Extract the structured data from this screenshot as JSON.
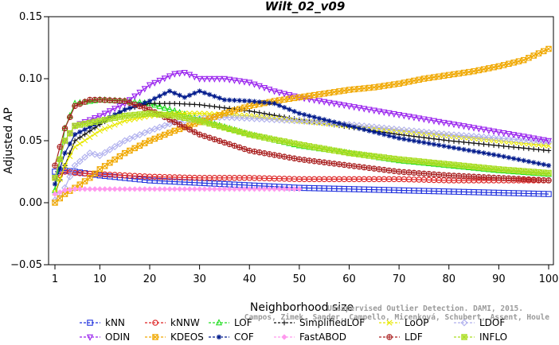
{
  "chart_data": {
    "type": "line",
    "title": "Wilt_02_v09",
    "xlabel": "Neighborhood size",
    "ylabel": "Adjusted AP",
    "xlim": [
      1,
      100
    ],
    "ylim": [
      -0.05,
      0.15
    ],
    "xticks": [
      "1",
      "10",
      "20",
      "30",
      "40",
      "50",
      "60",
      "70",
      "80",
      "90",
      "100"
    ],
    "yticks": [
      "−0.05",
      "0.00",
      "0.05",
      "0.10",
      "0.15"
    ],
    "grid": false,
    "legend_position": "bottom",
    "credit": {
      "line1": "Unsupervised Outlier Detection. DAMI, 2015.",
      "line2": "Campos, Zimek, Sander, Campello, Micenková, Schubert, Assent, Houle"
    },
    "series": [
      {
        "name": "kNN",
        "color": "#2233dd",
        "marker": "square",
        "points": [
          [
            1,
            0.025
          ],
          [
            3,
            0.026
          ],
          [
            5,
            0.025
          ],
          [
            10,
            0.022
          ],
          [
            20,
            0.018
          ],
          [
            30,
            0.016
          ],
          [
            40,
            0.014
          ],
          [
            50,
            0.012
          ],
          [
            60,
            0.011
          ],
          [
            70,
            0.01
          ],
          [
            80,
            0.009
          ],
          [
            90,
            0.008
          ],
          [
            100,
            0.007
          ]
        ]
      },
      {
        "name": "kNNW",
        "color": "#dd2222",
        "marker": "circle",
        "points": [
          [
            1,
            0.02
          ],
          [
            3,
            0.025
          ],
          [
            5,
            0.024
          ],
          [
            10,
            0.023
          ],
          [
            20,
            0.021
          ],
          [
            30,
            0.02
          ],
          [
            40,
            0.02
          ],
          [
            50,
            0.019
          ],
          [
            60,
            0.019
          ],
          [
            70,
            0.019
          ],
          [
            80,
            0.018
          ],
          [
            90,
            0.018
          ],
          [
            100,
            0.018
          ]
        ]
      },
      {
        "name": "LOF",
        "color": "#22dd22",
        "marker": "triangle",
        "points": [
          [
            1,
            0.01
          ],
          [
            3,
            0.06
          ],
          [
            5,
            0.08
          ],
          [
            10,
            0.083
          ],
          [
            15,
            0.082
          ],
          [
            20,
            0.08
          ],
          [
            25,
            0.074
          ],
          [
            30,
            0.067
          ],
          [
            40,
            0.055
          ],
          [
            50,
            0.046
          ],
          [
            60,
            0.04
          ],
          [
            70,
            0.034
          ],
          [
            80,
            0.03
          ],
          [
            90,
            0.026
          ],
          [
            100,
            0.023
          ]
        ]
      },
      {
        "name": "SimplifiedLOF",
        "color": "#111111",
        "marker": "plus",
        "points": [
          [
            1,
            0.007
          ],
          [
            3,
            0.03
          ],
          [
            5,
            0.05
          ],
          [
            10,
            0.063
          ],
          [
            15,
            0.075
          ],
          [
            20,
            0.08
          ],
          [
            25,
            0.08
          ],
          [
            30,
            0.079
          ],
          [
            40,
            0.074
          ],
          [
            50,
            0.067
          ],
          [
            60,
            0.061
          ],
          [
            70,
            0.055
          ],
          [
            80,
            0.05
          ],
          [
            90,
            0.046
          ],
          [
            100,
            0.042
          ]
        ]
      },
      {
        "name": "LoOP",
        "color": "#e8e800",
        "marker": "x",
        "points": [
          [
            1,
            0.008
          ],
          [
            3,
            0.03
          ],
          [
            5,
            0.045
          ],
          [
            10,
            0.058
          ],
          [
            15,
            0.066
          ],
          [
            20,
            0.07
          ],
          [
            25,
            0.072
          ],
          [
            30,
            0.072
          ],
          [
            40,
            0.07
          ],
          [
            50,
            0.066
          ],
          [
            60,
            0.062
          ],
          [
            70,
            0.058
          ],
          [
            80,
            0.054
          ],
          [
            90,
            0.05
          ],
          [
            100,
            0.046
          ]
        ]
      },
      {
        "name": "LDOF",
        "color": "#b0b0ee",
        "marker": "diamond",
        "points": [
          [
            1,
            0.002
          ],
          [
            3,
            0.012
          ],
          [
            5,
            0.03
          ],
          [
            8,
            0.04
          ],
          [
            10,
            0.038
          ],
          [
            15,
            0.05
          ],
          [
            20,
            0.058
          ],
          [
            25,
            0.065
          ],
          [
            30,
            0.068
          ],
          [
            35,
            0.069
          ],
          [
            40,
            0.068
          ],
          [
            50,
            0.066
          ],
          [
            60,
            0.063
          ],
          [
            70,
            0.059
          ],
          [
            80,
            0.055
          ],
          [
            90,
            0.052
          ],
          [
            100,
            0.049
          ]
        ]
      },
      {
        "name": "ODIN",
        "color": "#9922ee",
        "marker": "triangle-down",
        "points": [
          [
            1,
            0.02
          ],
          [
            3,
            0.05
          ],
          [
            5,
            0.062
          ],
          [
            10,
            0.07
          ],
          [
            15,
            0.08
          ],
          [
            20,
            0.095
          ],
          [
            25,
            0.104
          ],
          [
            27,
            0.105
          ],
          [
            30,
            0.1
          ],
          [
            35,
            0.1
          ],
          [
            40,
            0.097
          ],
          [
            45,
            0.09
          ],
          [
            50,
            0.085
          ],
          [
            60,
            0.078
          ],
          [
            70,
            0.071
          ],
          [
            80,
            0.064
          ],
          [
            90,
            0.057
          ],
          [
            100,
            0.05
          ]
        ]
      },
      {
        "name": "KDEOS",
        "color": "#f0a800",
        "marker": "square-x",
        "points": [
          [
            1,
            0.0
          ],
          [
            3,
            0.007
          ],
          [
            5,
            0.012
          ],
          [
            8,
            0.02
          ],
          [
            10,
            0.027
          ],
          [
            15,
            0.04
          ],
          [
            20,
            0.05
          ],
          [
            25,
            0.058
          ],
          [
            30,
            0.065
          ],
          [
            35,
            0.072
          ],
          [
            40,
            0.078
          ],
          [
            45,
            0.082
          ],
          [
            50,
            0.085
          ],
          [
            55,
            0.088
          ],
          [
            60,
            0.091
          ],
          [
            65,
            0.093
          ],
          [
            70,
            0.096
          ],
          [
            75,
            0.1
          ],
          [
            80,
            0.103
          ],
          [
            85,
            0.106
          ],
          [
            90,
            0.11
          ],
          [
            95,
            0.115
          ],
          [
            100,
            0.124
          ]
        ]
      },
      {
        "name": "COF",
        "color": "#001a8c",
        "marker": "asterisk",
        "points": [
          [
            1,
            0.015
          ],
          [
            3,
            0.04
          ],
          [
            5,
            0.055
          ],
          [
            10,
            0.065
          ],
          [
            15,
            0.075
          ],
          [
            20,
            0.082
          ],
          [
            24,
            0.09
          ],
          [
            27,
            0.085
          ],
          [
            30,
            0.09
          ],
          [
            35,
            0.083
          ],
          [
            40,
            0.082
          ],
          [
            45,
            0.08
          ],
          [
            50,
            0.072
          ],
          [
            60,
            0.062
          ],
          [
            70,
            0.052
          ],
          [
            80,
            0.045
          ],
          [
            90,
            0.038
          ],
          [
            100,
            0.03
          ]
        ]
      },
      {
        "name": "FastABOD",
        "color": "#ff99ee",
        "marker": "diamond-filled",
        "points": [
          [
            1,
            0.007
          ],
          [
            3,
            0.01
          ],
          [
            5,
            0.011
          ],
          [
            10,
            0.011
          ],
          [
            20,
            0.011
          ],
          [
            30,
            0.011
          ],
          [
            40,
            0.011
          ],
          [
            50,
            0.011
          ]
        ]
      },
      {
        "name": "LDF",
        "color": "#aa2222",
        "marker": "circle-plus",
        "points": [
          [
            1,
            0.03
          ],
          [
            3,
            0.06
          ],
          [
            5,
            0.078
          ],
          [
            8,
            0.083
          ],
          [
            10,
            0.083
          ],
          [
            15,
            0.082
          ],
          [
            20,
            0.075
          ],
          [
            25,
            0.065
          ],
          [
            30,
            0.055
          ],
          [
            40,
            0.042
          ],
          [
            50,
            0.035
          ],
          [
            60,
            0.03
          ],
          [
            70,
            0.025
          ],
          [
            80,
            0.022
          ],
          [
            90,
            0.02
          ],
          [
            100,
            0.018
          ]
        ]
      },
      {
        "name": "INFLO",
        "color": "#aadd22",
        "marker": "square-cross",
        "points": [
          [
            1,
            0.02
          ],
          [
            3,
            0.05
          ],
          [
            5,
            0.062
          ],
          [
            10,
            0.066
          ],
          [
            15,
            0.07
          ],
          [
            20,
            0.072
          ],
          [
            25,
            0.07
          ],
          [
            30,
            0.066
          ],
          [
            40,
            0.055
          ],
          [
            50,
            0.047
          ],
          [
            60,
            0.04
          ],
          [
            70,
            0.035
          ],
          [
            80,
            0.031
          ],
          [
            90,
            0.027
          ],
          [
            100,
            0.024
          ]
        ]
      }
    ],
    "legend_order": [
      "kNN",
      "kNNW",
      "LOF",
      "SimplifiedLOF",
      "LoOP",
      "LDOF",
      "ODIN",
      "KDEOS",
      "COF",
      "FastABOD",
      "LDF",
      "INFLO"
    ]
  }
}
